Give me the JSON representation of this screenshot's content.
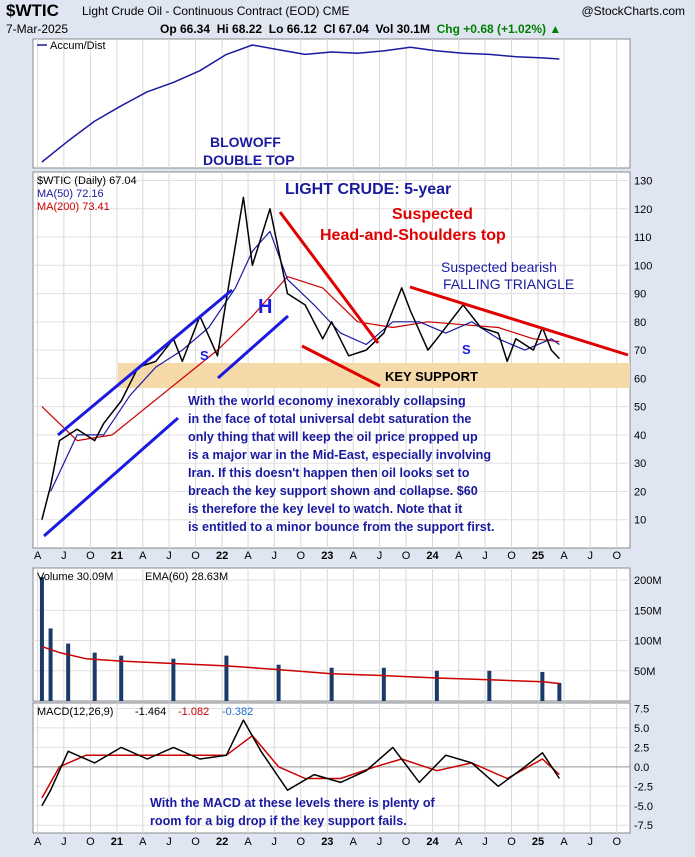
{
  "header": {
    "symbol": "$WTIC",
    "name": "Light Crude Oil - Continuous Contract (EOD)",
    "exchange": "CME",
    "source": "@StockCharts.com",
    "date": "7-Mar-2025",
    "open": "Op 66.34",
    "high": "Hi 68.22",
    "low": "Lo 66.12",
    "close": "Cl 67.04",
    "volume": "Vol 30.1M",
    "change": "Chg +0.68 (+1.02%)"
  },
  "chart_data": [
    {
      "type": "line",
      "panel": "accumulation-distribution",
      "legend": "Accum/Dist",
      "x": [
        "2020-04",
        "2020-07",
        "2020-10",
        "2021-01",
        "2021-04",
        "2021-07",
        "2021-10",
        "2022-01",
        "2022-04",
        "2022-07",
        "2022-10",
        "2023-01",
        "2023-04",
        "2023-07",
        "2023-10",
        "2024-01",
        "2024-04",
        "2024-07",
        "2024-10",
        "2025-01",
        "2025-03"
      ],
      "y": [
        0,
        18,
        35,
        48,
        60,
        68,
        78,
        92,
        100,
        96,
        92,
        94,
        93,
        95,
        98,
        95,
        93,
        92,
        90,
        89,
        88
      ],
      "annotations": [
        "BLOWOFF",
        "DOUBLE TOP"
      ]
    },
    {
      "type": "line",
      "panel": "price",
      "legend": [
        "$WTIC (Daily) 67.04",
        "MA(50) 72.16",
        "MA(200) 73.41"
      ],
      "title": "LIGHT CRUDE: 5-year",
      "ylim": [
        0,
        133
      ],
      "yticks": [
        10,
        20,
        30,
        40,
        50,
        60,
        70,
        80,
        90,
        100,
        110,
        120,
        130
      ],
      "x_ticks": [
        "A",
        "J",
        "O",
        "21",
        "A",
        "J",
        "O",
        "22",
        "A",
        "J",
        "O",
        "23",
        "A",
        "J",
        "O",
        "24",
        "A",
        "J",
        "O",
        "25",
        "A",
        "J",
        "O"
      ],
      "series": [
        {
          "name": "$WTIC (Daily)",
          "x": [
            "2020-04",
            "2020-05",
            "2020-06",
            "2020-08",
            "2020-10",
            "2020-11",
            "2021-01",
            "2021-03",
            "2021-05",
            "2021-07",
            "2021-08",
            "2021-10",
            "2021-12",
            "2022-01",
            "2022-03",
            "2022-04",
            "2022-06",
            "2022-08",
            "2022-10",
            "2022-12",
            "2023-01",
            "2023-03",
            "2023-05",
            "2023-07",
            "2023-09",
            "2023-10",
            "2023-12",
            "2024-01",
            "2024-04",
            "2024-06",
            "2024-08",
            "2024-09",
            "2024-10",
            "2024-12",
            "2025-01",
            "2025-02",
            "2025-03"
          ],
          "y": [
            10,
            22,
            38,
            42,
            38,
            44,
            52,
            64,
            66,
            74,
            66,
            82,
            68,
            88,
            124,
            100,
            120,
            90,
            86,
            74,
            80,
            68,
            70,
            76,
            92,
            84,
            70,
            74,
            86,
            78,
            76,
            66,
            74,
            70,
            78,
            70,
            67
          ]
        },
        {
          "name": "MA(50)",
          "x": [
            "2020-05",
            "2020-08",
            "2020-11",
            "2021-02",
            "2021-05",
            "2021-08",
            "2021-11",
            "2022-02",
            "2022-04",
            "2022-06",
            "2022-08",
            "2022-11",
            "2023-02",
            "2023-05",
            "2023-08",
            "2023-11",
            "2024-02",
            "2024-05",
            "2024-08",
            "2024-11",
            "2025-02",
            "2025-03"
          ],
          "y": [
            20,
            40,
            40,
            54,
            64,
            70,
            78,
            92,
            105,
            112,
            95,
            86,
            76,
            72,
            80,
            80,
            76,
            80,
            74,
            70,
            74,
            72
          ]
        },
        {
          "name": "MA(200)",
          "x": [
            "2020-04",
            "2020-08",
            "2020-12",
            "2021-04",
            "2021-08",
            "2021-12",
            "2022-04",
            "2022-08",
            "2022-12",
            "2023-04",
            "2023-08",
            "2023-12",
            "2024-04",
            "2024-08",
            "2024-12",
            "2025-03"
          ],
          "y": [
            50,
            38,
            40,
            50,
            60,
            70,
            82,
            96,
            92,
            80,
            78,
            80,
            79,
            78,
            74,
            73
          ]
        }
      ],
      "annotations": [
        "Suspected",
        "Head-and-Shoulders top",
        "Suspected bearish",
        "FALLING TRIANGLE",
        "S",
        "H",
        "S",
        "S",
        "KEY SUPPORT"
      ]
    },
    {
      "type": "bar",
      "panel": "volume",
      "legend": [
        "Volume 30.09M",
        "EMA(60) 28.63M"
      ],
      "yticks": [
        "50M",
        "100M",
        "150M",
        "200M"
      ],
      "series": [
        {
          "name": "Volume",
          "x": [
            "2020-04",
            "2020-05",
            "2020-07",
            "2020-10",
            "2021-01",
            "2021-07",
            "2022-01",
            "2022-07",
            "2023-01",
            "2023-07",
            "2024-01",
            "2024-07",
            "2025-01",
            "2025-03"
          ],
          "y": [
            205,
            120,
            95,
            80,
            75,
            70,
            75,
            60,
            55,
            55,
            50,
            50,
            48,
            30
          ]
        },
        {
          "name": "EMA(60)",
          "x": [
            "2020-04",
            "2020-06",
            "2020-09",
            "2021-01",
            "2021-07",
            "2022-01",
            "2022-07",
            "2023-01",
            "2023-07",
            "2024-01",
            "2024-07",
            "2025-01",
            "2025-03"
          ],
          "y": [
            90,
            80,
            70,
            66,
            62,
            58,
            52,
            45,
            42,
            38,
            35,
            32,
            29
          ]
        }
      ]
    },
    {
      "type": "line",
      "panel": "macd",
      "legend": [
        "MACD(12,26,9)",
        "-1.464",
        "-1.082",
        "-0.382"
      ],
      "yticks": [
        "-7.5",
        "-5.0",
        "-2.5",
        "0.0",
        "2.5",
        "5.0",
        "7.5"
      ],
      "ylim": [
        -8.5,
        8.2
      ],
      "series": [
        {
          "name": "MACD",
          "x": [
            "2020-04",
            "2020-05",
            "2020-07",
            "2020-10",
            "2021-01",
            "2021-04",
            "2021-07",
            "2021-10",
            "2022-01",
            "2022-03",
            "2022-05",
            "2022-08",
            "2022-11",
            "2023-02",
            "2023-05",
            "2023-08",
            "2023-11",
            "2024-02",
            "2024-05",
            "2024-08",
            "2024-11",
            "2025-01",
            "2025-03"
          ],
          "y": [
            -5,
            -3,
            2,
            0.5,
            2.5,
            1,
            2.5,
            1,
            1.5,
            6,
            2,
            -3,
            -1,
            -2,
            -0.5,
            2.5,
            -2,
            1.5,
            0.5,
            -2.5,
            0,
            1.8,
            -1.5
          ]
        },
        {
          "name": "Signal",
          "x": [
            "2020-04",
            "2020-06",
            "2020-09",
            "2021-01",
            "2021-05",
            "2021-09",
            "2022-01",
            "2022-04",
            "2022-07",
            "2022-10",
            "2023-02",
            "2023-06",
            "2023-09",
            "2024-01",
            "2024-05",
            "2024-09",
            "2025-01",
            "2025-03"
          ],
          "y": [
            -4,
            0,
            1.5,
            1.5,
            1.5,
            1.5,
            1.5,
            4,
            0,
            -1.5,
            -1.5,
            0,
            1,
            -0.5,
            0.5,
            -1.5,
            1,
            -1
          ]
        }
      ]
    }
  ],
  "notes": {
    "blowoff_line1": "BLOWOFF",
    "blowoff_line2": "DOUBLE TOP",
    "title": "LIGHT CRUDE: 5-year",
    "hs_line1": "Suspected",
    "hs_line2": "Head-and-Shoulders top",
    "tri_line1": "Suspected bearish",
    "tri_line2": "FALLING TRIANGLE",
    "key_support": "KEY SUPPORT",
    "label_s": "S",
    "label_h": "H",
    "commentary": [
      "With the world economy inexorably collapsing",
      "in the face of total universal debt saturation the",
      "only thing that will keep the oil price propped up",
      "is a major war in the Mid-East, especially involving",
      "Iran. If this doesn't happen then oil looks set to",
      "breach the key support shown and collapse. $60",
      "is therefore the key level to watch. Note that it",
      "is entitled to a minor bounce from the support first."
    ],
    "macd_note": [
      "With the MACD  at these levels there is plenty of",
      "room for a big drop if the key support fails."
    ]
  },
  "colors": {
    "panel_bg": "#ffffff",
    "frame": "#888888",
    "grid": "#d0d0d0",
    "price": "#000000",
    "ma50": "#1a1aa0",
    "ma200": "#cc0000",
    "volume": "#1a3a6a",
    "support_band": "#f5d9a8",
    "annotation_blue": "#1a1aa0",
    "annotation_red": "#e00000",
    "trend_blue": "#1a1ae0",
    "trend_red": "#e00000"
  }
}
